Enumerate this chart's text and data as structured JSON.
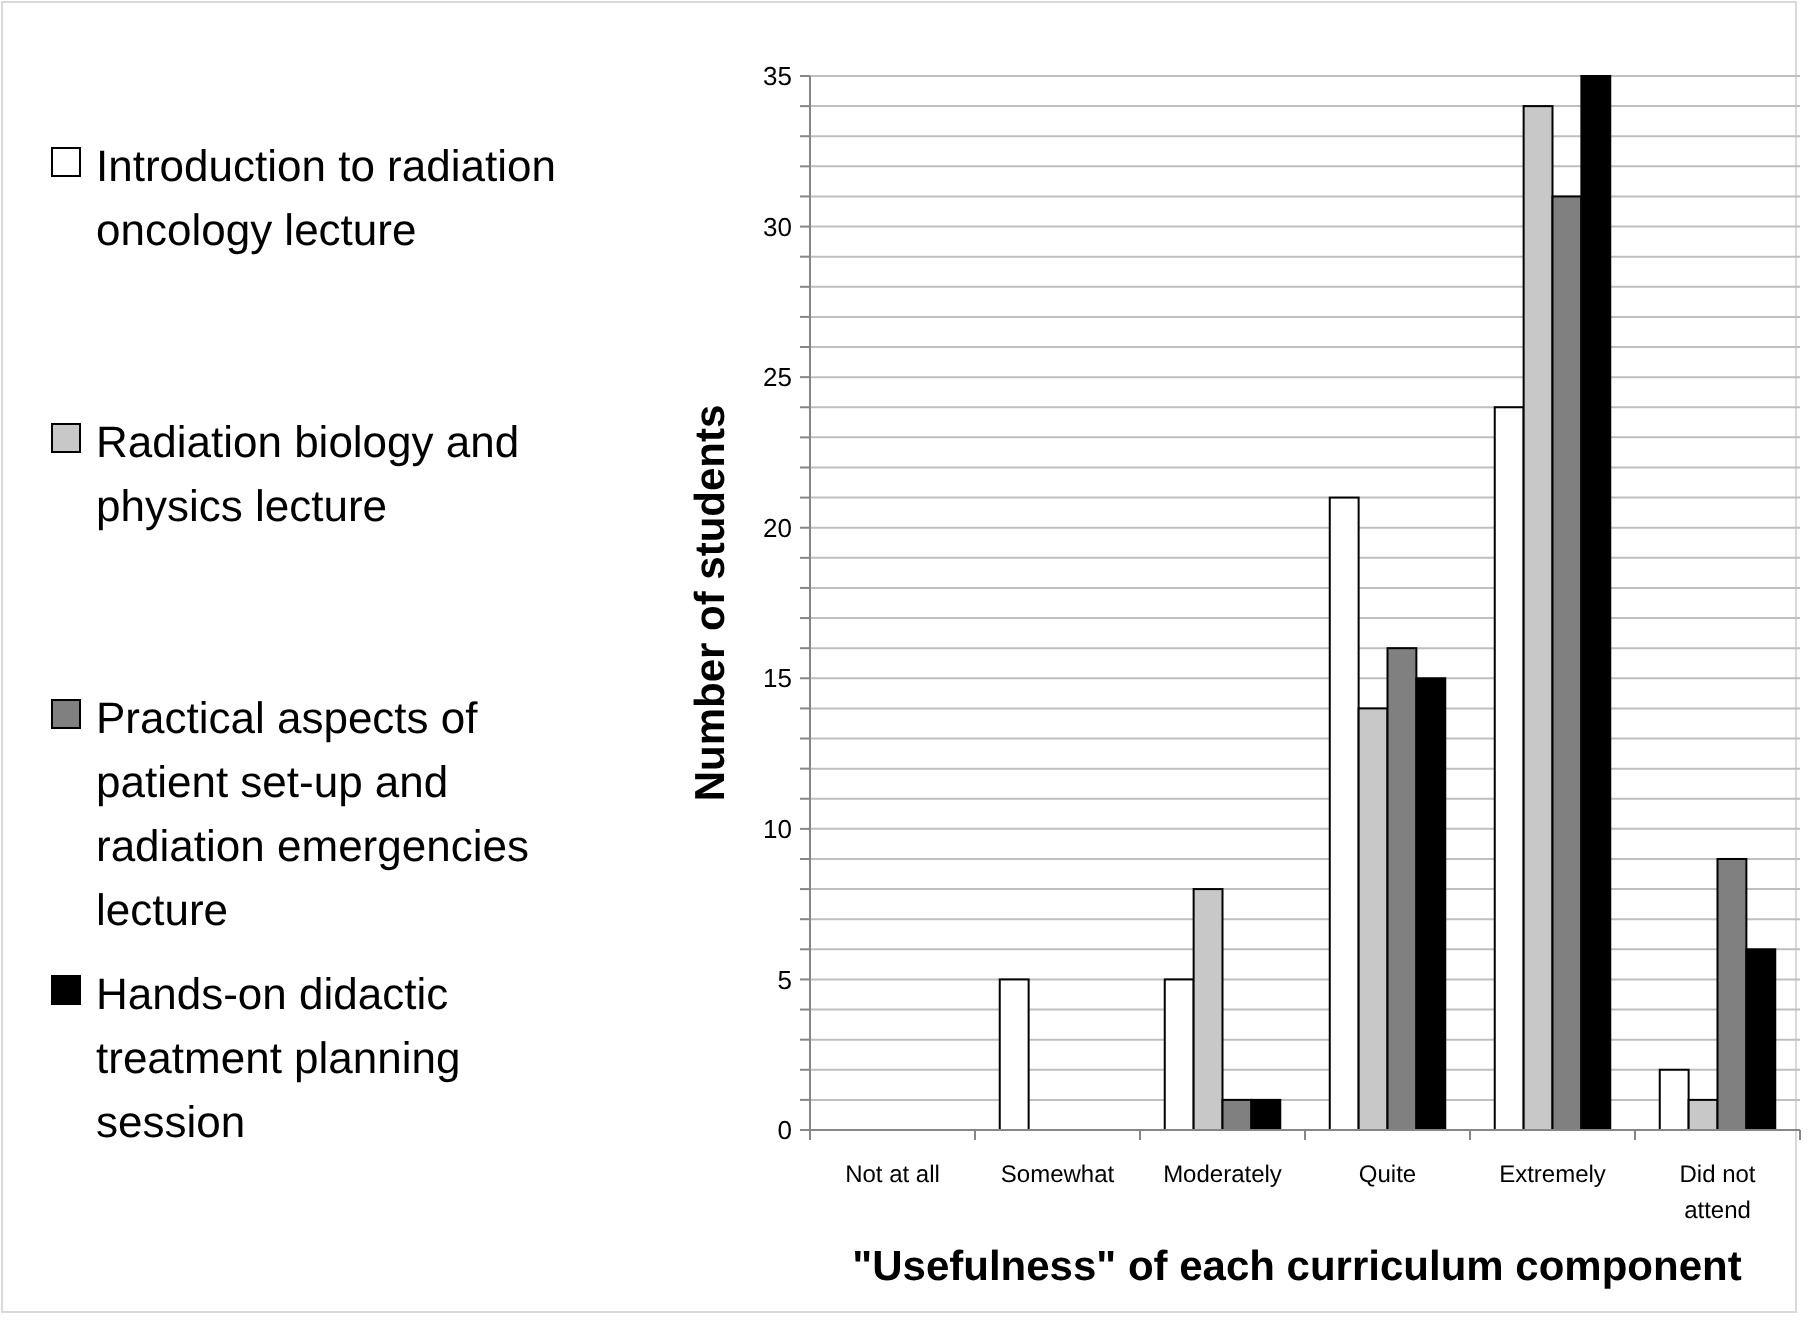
{
  "chart_data": {
    "type": "bar",
    "xlabel": "\"Usefulness\" of each curriculum component",
    "ylabel": "Number of students",
    "categories": [
      "Not at all",
      "Somewhat",
      "Moderately",
      "Quite",
      "Extremely",
      "Did not attend"
    ],
    "series": [
      {
        "name": "Introduction to radiation oncology lecture",
        "color": "#ffffff",
        "values": [
          0,
          5,
          5,
          21,
          24,
          2
        ]
      },
      {
        "name": "Radiation biology and physics lecture",
        "color": "#c8c8c8",
        "values": [
          0,
          0,
          8,
          14,
          34,
          1
        ]
      },
      {
        "name": "Practical aspects of patient set-up and radiation emergencies lecture",
        "color": "#808080",
        "values": [
          0,
          0,
          1,
          16,
          31,
          9
        ]
      },
      {
        "name": "Hands-on didactic treatment planning session",
        "color": "#000000",
        "values": [
          0,
          0,
          1,
          15,
          35,
          6
        ]
      }
    ],
    "ylim": [
      0,
      35
    ],
    "yticks": [
      0,
      {
        "value": 1,
        "label": null
      },
      {
        "value": 2,
        "label": null
      },
      {
        "value": 3,
        "label": null
      },
      {
        "value": 4,
        "label": null
      },
      5,
      {
        "value": 6,
        "label": null
      },
      {
        "value": 7,
        "label": null
      },
      {
        "value": 8,
        "label": null
      },
      {
        "value": 9,
        "label": null
      },
      10,
      {
        "value": 11,
        "label": null
      },
      {
        "value": 12,
        "label": null
      },
      {
        "value": 13,
        "label": null
      },
      {
        "value": 14,
        "label": null
      },
      15,
      {
        "value": 16,
        "label": null
      },
      {
        "value": 17,
        "label": null
      },
      {
        "value": 18,
        "label": null
      },
      {
        "value": 19,
        "label": null
      },
      20,
      {
        "value": 21,
        "label": null
      },
      {
        "value": 22,
        "label": null
      },
      {
        "value": 23,
        "label": null
      },
      {
        "value": 24,
        "label": null
      },
      25,
      {
        "value": 26,
        "label": null
      },
      {
        "value": 27,
        "label": null
      },
      {
        "value": 28,
        "label": null
      },
      {
        "value": 29,
        "label": null
      },
      30,
      {
        "value": 31,
        "label": null
      },
      {
        "value": 32,
        "label": null
      },
      {
        "value": 33,
        "label": null
      },
      {
        "value": 34,
        "label": null
      },
      35
    ],
    "grid": "y",
    "legend": "left"
  }
}
